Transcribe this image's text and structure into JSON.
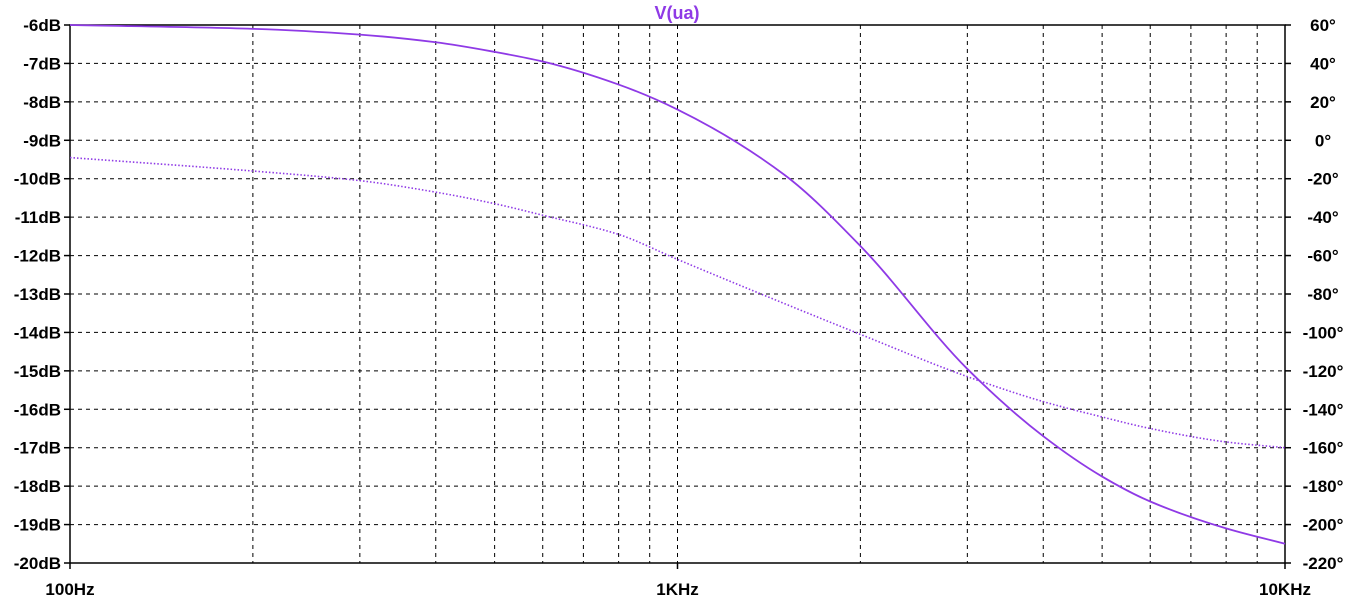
{
  "chart_data": {
    "type": "line",
    "title": "V(ua)",
    "x_scale": "log",
    "xlim": [
      "100Hz",
      "10KHz"
    ],
    "x_ticks": [
      "100Hz",
      "1KHz",
      "10KHz"
    ],
    "y_left": {
      "unit": "dB",
      "range": [
        -20,
        -6
      ],
      "ticks": [
        "-6dB",
        "-7dB",
        "-8dB",
        "-9dB",
        "-10dB",
        "-11dB",
        "-12dB",
        "-13dB",
        "-14dB",
        "-15dB",
        "-16dB",
        "-17dB",
        "-18dB",
        "-19dB",
        "-20dB"
      ]
    },
    "y_right": {
      "unit": "°",
      "range": [
        -220,
        60
      ],
      "ticks": [
        "60°",
        "40°",
        "20°",
        "0°",
        "-20°",
        "-40°",
        "-60°",
        "-80°",
        "-100°",
        "-120°",
        "-140°",
        "-160°",
        "-180°",
        "-200°",
        "-220°"
      ]
    },
    "grid": true,
    "series": [
      {
        "name": "V(ua)",
        "style": "solid",
        "axis": "left",
        "x": [
          "100Hz",
          "200Hz",
          "300Hz",
          "400Hz",
          "500Hz",
          "600Hz",
          "800Hz",
          "1KHz",
          "1.5KHz",
          "2KHz",
          "3KHz",
          "4KHz",
          "5KHz",
          "6KHz",
          "8KHz",
          "10KHz"
        ],
        "values": [
          -6.0,
          -6.1,
          -6.25,
          -6.45,
          -6.7,
          -6.95,
          -7.55,
          -8.2,
          -9.9,
          -11.75,
          -14.95,
          -16.7,
          -17.75,
          -18.4,
          -19.1,
          -19.5
        ]
      },
      {
        "name": "",
        "style": "dotted",
        "axis": "right",
        "x": [
          "100Hz",
          "200Hz",
          "300Hz",
          "400Hz",
          "500Hz",
          "600Hz",
          "800Hz",
          "1KHz",
          "1.5KHz",
          "2KHz",
          "3KHz",
          "4KHz",
          "5KHz",
          "6KHz",
          "8KHz",
          "10KHz"
        ],
        "values": [
          -9,
          -16,
          -21,
          -27,
          -33,
          -39,
          -49,
          -62,
          -85,
          -101,
          -123,
          -136,
          -144,
          -150,
          -157,
          -160
        ]
      }
    ],
    "colors": {
      "trace": "#8f3ae6",
      "grid": "#000000",
      "title": "#8f3ae6",
      "text": "#000000"
    }
  }
}
